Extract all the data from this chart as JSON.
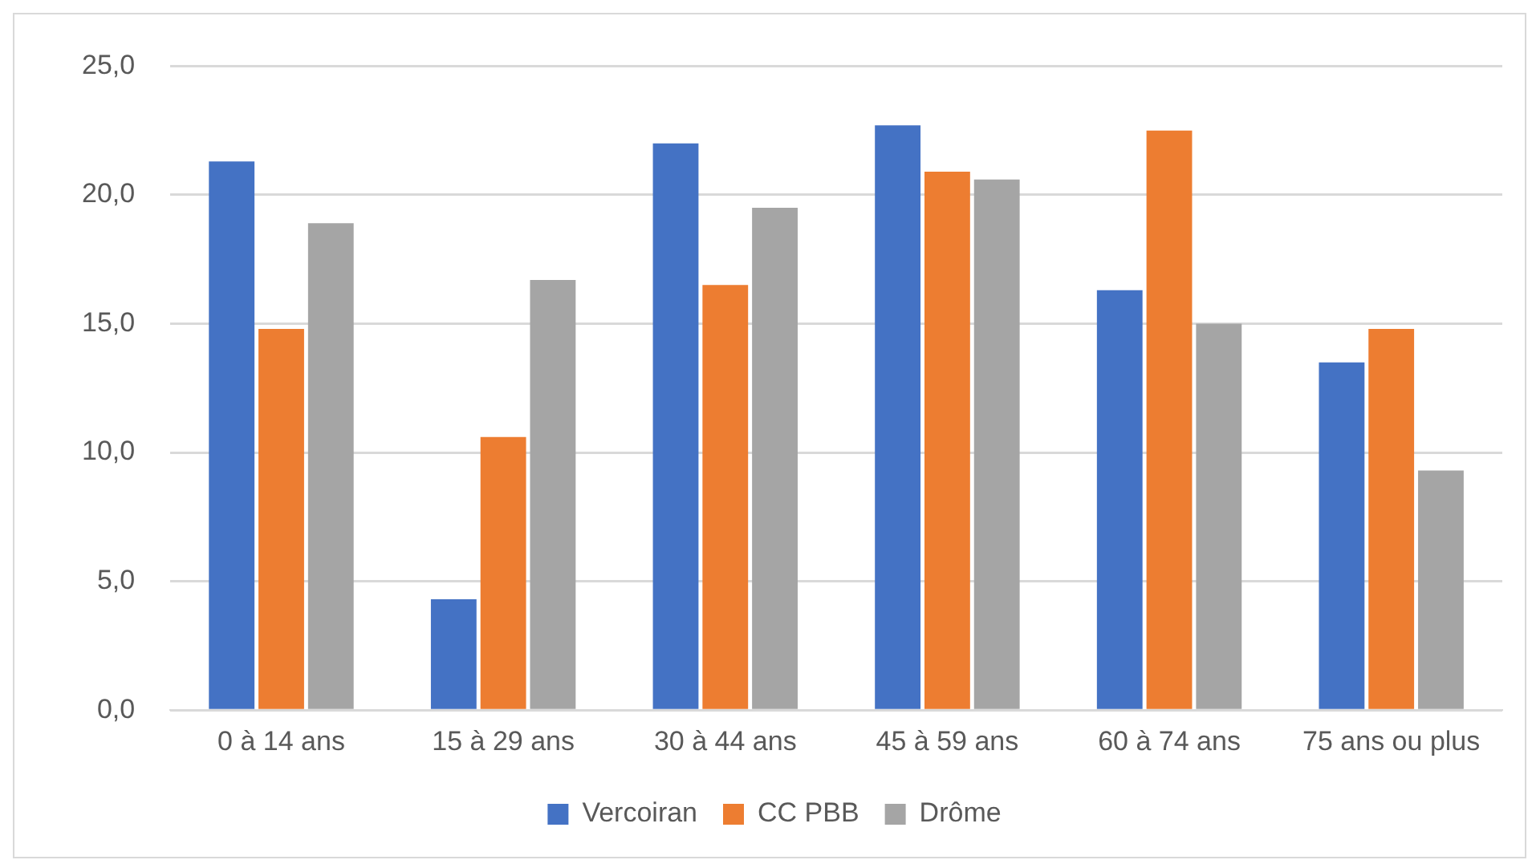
{
  "chart_data": {
    "type": "bar",
    "categories": [
      "0 à 14 ans",
      "15 à 29 ans",
      "30 à 44 ans",
      "45 à 59 ans",
      "60 à 74 ans",
      "75 ans ou plus"
    ],
    "series": [
      {
        "name": "Vercoiran",
        "color": "#4472c4",
        "values": [
          21.3,
          4.3,
          22.0,
          22.7,
          16.3,
          13.5
        ]
      },
      {
        "name": "CC PBB",
        "color": "#ed7d31",
        "values": [
          14.8,
          10.6,
          16.5,
          20.9,
          22.5,
          14.8
        ]
      },
      {
        "name": "Drôme",
        "color": "#a5a5a5",
        "values": [
          18.9,
          16.7,
          19.5,
          20.6,
          15.0,
          9.3
        ]
      }
    ],
    "ylim": [
      0,
      25
    ],
    "yticks": [
      {
        "value": 0,
        "label": "0,0"
      },
      {
        "value": 5,
        "label": "5,0"
      },
      {
        "value": 10,
        "label": "10,0"
      },
      {
        "value": 15,
        "label": "15,0"
      },
      {
        "value": 20,
        "label": "20,0"
      },
      {
        "value": 25,
        "label": "25,0"
      }
    ],
    "grid": "y",
    "legend": "bottom"
  }
}
